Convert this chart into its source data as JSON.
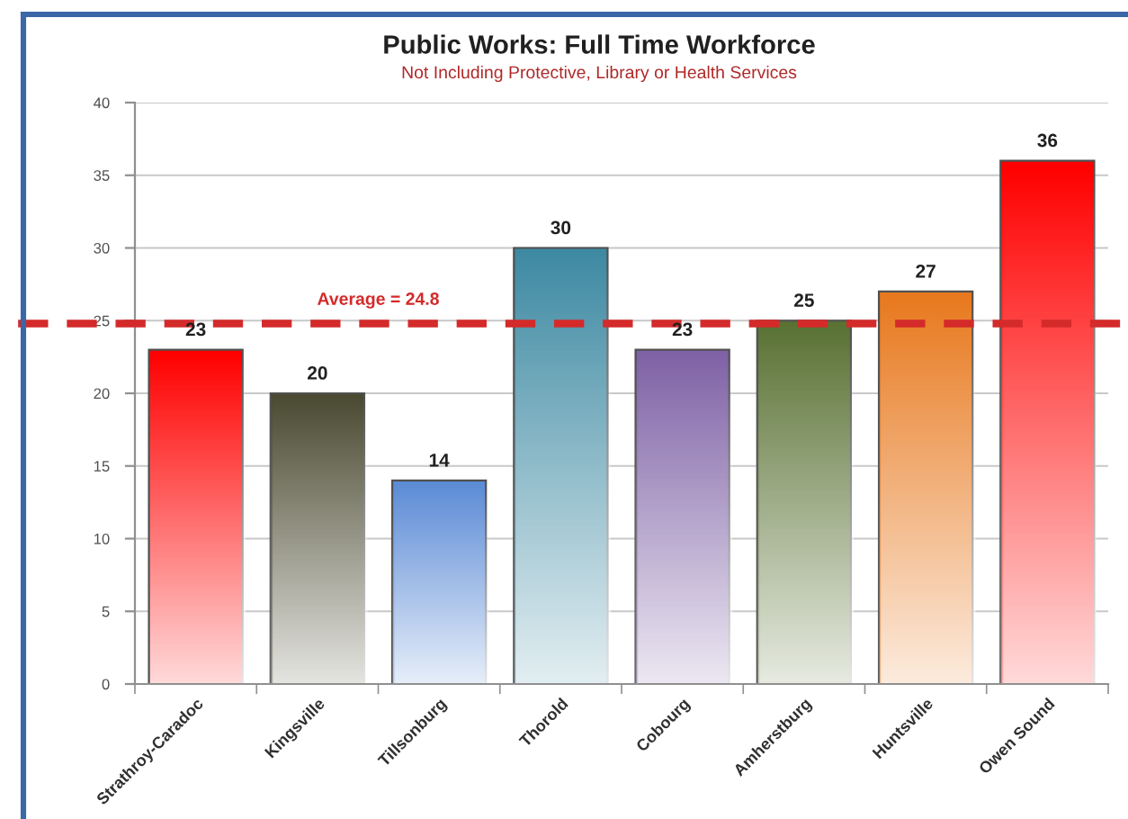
{
  "chart_data": {
    "type": "bar",
    "title": "Public Works: Full Time Workforce",
    "subtitle": "Not Including Protective, Library or Health Services",
    "categories": [
      "Strathroy-Caradoc",
      "Kingsville",
      "Tillsonburg",
      "Thorold",
      "Cobourg",
      "Amherstburg",
      "Huntsville",
      "Owen Sound"
    ],
    "values": [
      23,
      20,
      14,
      30,
      23,
      25,
      27,
      36
    ],
    "colors": [
      "#ff0000",
      "#4b4a32",
      "#5b8bd6",
      "#3e8aa3",
      "#7f62a6",
      "#5a7234",
      "#e8791e",
      "#ff0000"
    ],
    "ylim": [
      0,
      40
    ],
    "yticks": [
      0,
      5,
      10,
      15,
      20,
      25,
      30,
      35,
      40
    ],
    "grid": "y",
    "data_labels": true,
    "ref_lines": [
      {
        "axis": "y",
        "value": 24.8,
        "label": "Average = 24.8",
        "color": "#d42a2a",
        "line_style": "dashed"
      }
    ]
  }
}
